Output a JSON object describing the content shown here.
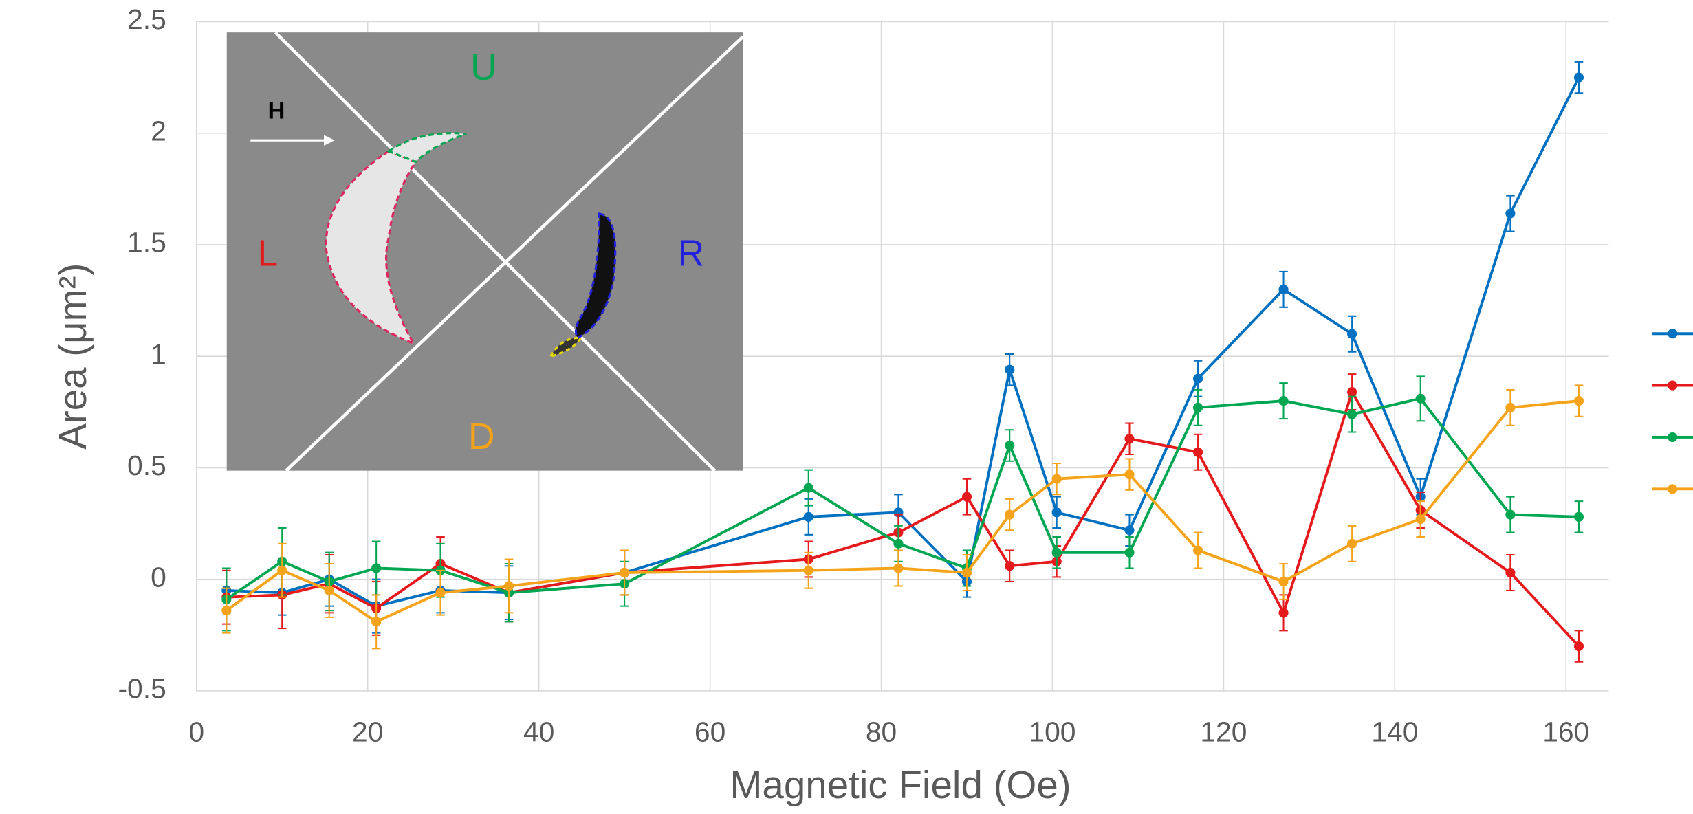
{
  "chart_data": {
    "type": "line",
    "x_label": "Magnetic Field (Oe)",
    "y_label": "Area (μm²)",
    "x": [
      3.5,
      10,
      15.5,
      21,
      28.5,
      36.5,
      50,
      71.5,
      82,
      90,
      95,
      100.5,
      109,
      117,
      127,
      135,
      143,
      153.5,
      161.5
    ],
    "series": [
      {
        "color": "#0070c0",
        "values": [
          -0.05,
          -0.06,
          0,
          -0.12,
          -0.05,
          -0.06,
          0.03,
          0.28,
          0.3,
          -0.01,
          0.94,
          0.3,
          0.22,
          0.9,
          1.3,
          1.1,
          0.37,
          1.64,
          2.25
        ],
        "errors": [
          0.1,
          0.1,
          0.12,
          0.12,
          0.1,
          0.12,
          0.1,
          0.08,
          0.08,
          0.07,
          0.07,
          0.07,
          0.07,
          0.08,
          0.08,
          0.08,
          0.08,
          0.08,
          0.07
        ]
      },
      {
        "color": "#e41a1c",
        "values": [
          -0.08,
          -0.07,
          -0.02,
          -0.13,
          0.07,
          -0.06,
          0.03,
          0.09,
          0.21,
          0.37,
          0.06,
          0.08,
          0.63,
          0.57,
          -0.15,
          0.84,
          0.31,
          0.03,
          -0.3
        ],
        "errors": [
          0.12,
          0.15,
          0.13,
          0.12,
          0.12,
          0.13,
          0.1,
          0.08,
          0.08,
          0.08,
          0.07,
          0.07,
          0.07,
          0.08,
          0.08,
          0.08,
          0.08,
          0.08,
          0.07
        ]
      },
      {
        "color": "#00a651",
        "values": [
          -0.09,
          0.08,
          -0.01,
          0.05,
          0.04,
          -0.06,
          -0.02,
          0.41,
          0.16,
          0.05,
          0.6,
          0.12,
          0.12,
          0.77,
          0.8,
          0.74,
          0.81,
          0.29,
          0.28
        ],
        "errors": [
          0.14,
          0.15,
          0.13,
          0.12,
          0.12,
          0.13,
          0.1,
          0.08,
          0.08,
          0.08,
          0.07,
          0.07,
          0.07,
          0.08,
          0.08,
          0.08,
          0.1,
          0.08,
          0.07
        ]
      },
      {
        "color": "#f5a31a",
        "values": [
          -0.14,
          0.04,
          -0.05,
          -0.19,
          -0.06,
          -0.03,
          0.03,
          0.04,
          0.05,
          0.03,
          0.29,
          0.45,
          0.47,
          0.13,
          -0.01,
          0.16,
          0.27,
          0.77,
          0.8
        ],
        "errors": [
          0.1,
          0.12,
          0.12,
          0.12,
          0.1,
          0.12,
          0.1,
          0.08,
          0.08,
          0.08,
          0.07,
          0.07,
          0.07,
          0.08,
          0.08,
          0.08,
          0.08,
          0.08,
          0.07
        ]
      }
    ],
    "xlim": [
      0,
      165
    ],
    "ylim": [
      -0.5,
      2.5
    ],
    "xticks": [
      0,
      20,
      40,
      60,
      80,
      100,
      120,
      140,
      160
    ],
    "yticks": [
      -0.5,
      0,
      0.5,
      1,
      1.5,
      2,
      2.5
    ],
    "grid": true,
    "legend": "right",
    "inset": {
      "labels": [
        "U",
        "H",
        "L",
        "R",
        "D"
      ]
    }
  }
}
